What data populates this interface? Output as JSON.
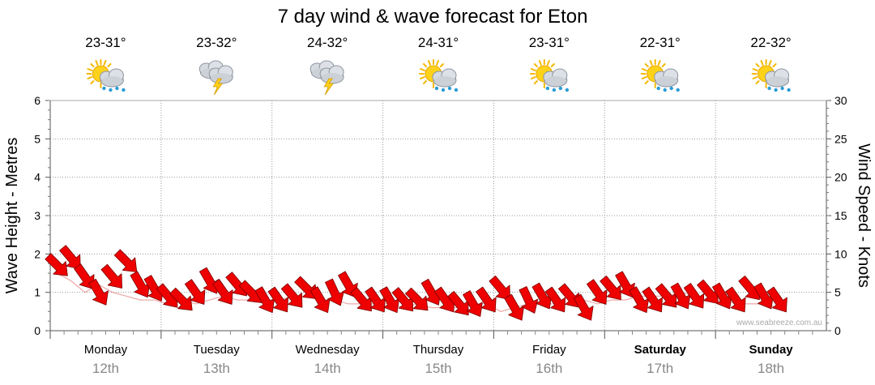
{
  "chart_data": {
    "type": "line",
    "title": "7 day wind & wave forecast for Eton",
    "ylabel": "Wave Height - Metres",
    "y2label": "Wind Speed - Knots",
    "ylim": [
      0,
      6
    ],
    "y2lim": [
      0,
      30
    ],
    "yticks": [
      "0",
      "1",
      "2",
      "3",
      "4",
      "5",
      "6"
    ],
    "y2ticks": [
      "0",
      "5",
      "10",
      "15",
      "20",
      "25",
      "30"
    ],
    "grid": true,
    "credit": "www.seabreeze.com.au",
    "days": [
      {
        "name": "Monday",
        "date": "12th",
        "temp": "23-31°",
        "icon": "sun-cloud-rain-icon",
        "bold": false
      },
      {
        "name": "Tuesday",
        "date": "13th",
        "temp": "23-32°",
        "icon": "storm-cloud-icon",
        "bold": false
      },
      {
        "name": "Wednesday",
        "date": "14th",
        "temp": "24-32°",
        "icon": "storm-cloud-icon",
        "bold": false
      },
      {
        "name": "Thursday",
        "date": "15th",
        "temp": "24-31°",
        "icon": "sun-cloud-rain-icon",
        "bold": false
      },
      {
        "name": "Friday",
        "date": "16th",
        "temp": "23-31°",
        "icon": "sun-cloud-rain-icon",
        "bold": false
      },
      {
        "name": "Saturday",
        "date": "17th",
        "temp": "22-31°",
        "icon": "sun-cloud-rain-icon",
        "bold": true
      },
      {
        "name": "Sunday",
        "date": "18th",
        "temp": "22-32°",
        "icon": "sun-cloud-rain-icon",
        "bold": true
      }
    ],
    "series": [
      {
        "name": "Wind Speed",
        "axis": "right",
        "unit": "knots",
        "x_start": "Monday 12th 00:00",
        "interval_hours": 3,
        "color": "#ff0000",
        "values": [
          8.5,
          9.5,
          7,
          5,
          7,
          9,
          6,
          5.5,
          4.5,
          4,
          5,
          6.5,
          5,
          6,
          5,
          4,
          4,
          4.5,
          5.5,
          4,
          5,
          6,
          4,
          4,
          4,
          4,
          4,
          5,
          4,
          3.5,
          3.5,
          4,
          5.5,
          3,
          4,
          4.5,
          4,
          4.5,
          3,
          5,
          5.5,
          6,
          4,
          4,
          4.5,
          4.5,
          4.5,
          5,
          4.5,
          4,
          5.5,
          4.5,
          4
        ],
        "directions_deg": [
          135,
          140,
          145,
          150,
          140,
          135,
          150,
          150,
          140,
          135,
          145,
          150,
          145,
          140,
          135,
          150,
          145,
          140,
          135,
          150,
          155,
          150,
          140,
          145,
          150,
          140,
          135,
          150,
          145,
          140,
          150,
          145,
          140,
          150,
          155,
          150,
          145,
          140,
          150,
          145,
          140,
          150,
          150,
          145,
          140,
          150,
          145,
          140,
          150,
          145,
          140,
          150,
          145
        ]
      },
      {
        "name": "Wave Height",
        "axis": "left",
        "unit": "m",
        "x_start": "Monday 12th 00:00",
        "interval_hours": 3,
        "color": "#ff0000",
        "values": [
          1.5,
          1.3,
          1.0,
          1.2,
          1.0,
          0.9,
          0.8,
          0.8,
          0.7,
          0.8,
          0.7,
          0.8,
          0.9,
          0.8,
          0.8,
          0.8,
          0.8,
          0.9,
          0.9,
          0.8,
          0.8,
          0.7,
          0.7,
          0.7,
          0.7,
          0.6,
          0.7,
          0.6,
          0.6,
          0.6,
          0.7,
          0.7,
          0.5,
          0.6,
          0.7,
          0.7,
          0.7,
          0.7,
          0.8,
          0.7,
          0.8,
          0.8,
          0.9,
          0.9,
          0.9,
          1.0,
          0.9,
          0.8,
          0.8,
          0.7,
          0.7,
          0.7,
          0.6
        ]
      }
    ]
  }
}
